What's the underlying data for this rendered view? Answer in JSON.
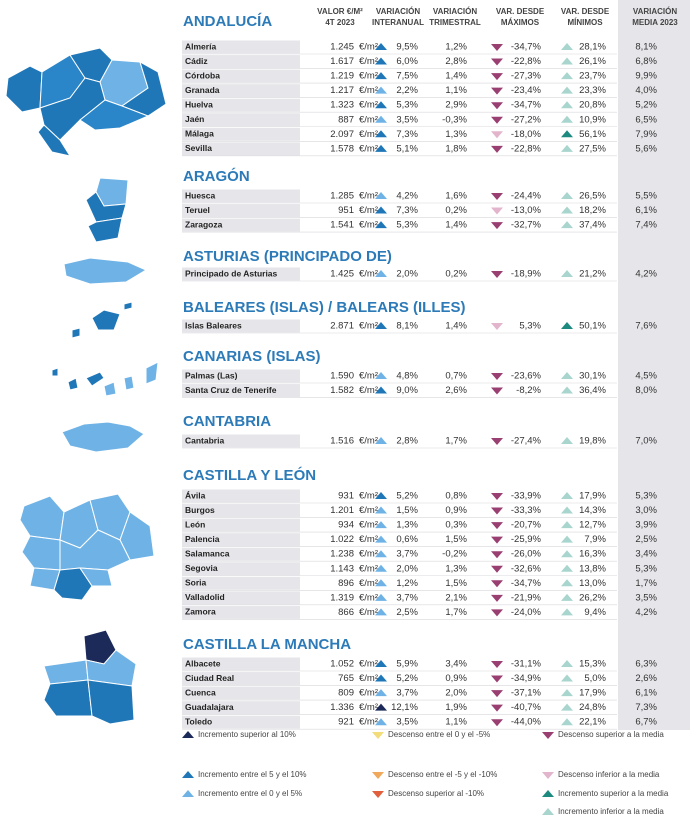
{
  "headers": [
    [
      "VALOR €/M²",
      "4T 2023"
    ],
    [
      "VARIACIÓN",
      "INTERANUAL"
    ],
    [
      "VARIACIÓN",
      "TRIMESTRAL"
    ],
    [
      "VAR. DESDE",
      "MÁXIMOS"
    ],
    [
      "VAR. DESDE",
      "MÍNIMOS"
    ],
    [
      "VARIACIÓN",
      "MEDIA 2023"
    ]
  ],
  "unit": "€/m²",
  "sections": [
    {
      "title": "ANDALUCÍA",
      "rows": [
        {
          "name": "Almería",
          "value": "1.245",
          "interanual": "9,5%",
          "trimestral": "1,2%",
          "maximos": "-34,7%",
          "minimos": "28,1%",
          "media": "8,1%",
          "icons": [
            1,
            6,
            9
          ]
        },
        {
          "name": "Cádiz",
          "value": "1.617",
          "interanual": "6,0%",
          "trimestral": "2,8%",
          "maximos": "-22,8%",
          "minimos": "26,1%",
          "media": "6,8%",
          "icons": [
            1,
            6,
            9
          ]
        },
        {
          "name": "Córdoba",
          "value": "1.219",
          "interanual": "7,5%",
          "trimestral": "1,4%",
          "maximos": "-27,3%",
          "minimos": "23,7%",
          "media": "9,9%",
          "icons": [
            1,
            6,
            9
          ]
        },
        {
          "name": "Granada",
          "value": "1.217",
          "interanual": "2,2%",
          "trimestral": "1,1%",
          "maximos": "-23,4%",
          "minimos": "23,3%",
          "media": "4,0%",
          "icons": [
            2,
            6,
            9
          ]
        },
        {
          "name": "Huelva",
          "value": "1.323",
          "interanual": "5,3%",
          "trimestral": "2,9%",
          "maximos": "-34,7%",
          "minimos": "20,8%",
          "media": "5,2%",
          "icons": [
            1,
            6,
            9
          ]
        },
        {
          "name": "Jaén",
          "value": "887",
          "interanual": "3,5%",
          "trimestral": "-0,3%",
          "maximos": "-27,2%",
          "minimos": "10,9%",
          "media": "6,5%",
          "icons": [
            2,
            6,
            9
          ]
        },
        {
          "name": "Málaga",
          "value": "2.097",
          "interanual": "7,3%",
          "trimestral": "1,3%",
          "maximos": "-18,0%",
          "minimos": "56,1%",
          "media": "7,9%",
          "icons": [
            1,
            7,
            8
          ]
        },
        {
          "name": "Sevilla",
          "value": "1.578",
          "interanual": "5,1%",
          "trimestral": "1,8%",
          "maximos": "-22,8%",
          "minimos": "27,5%",
          "media": "5,6%",
          "icons": [
            1,
            6,
            9
          ]
        }
      ]
    },
    {
      "title": "ARAGÓN",
      "rows": [
        {
          "name": "Huesca",
          "value": "1.285",
          "interanual": "4,2%",
          "trimestral": "1,6%",
          "maximos": "-24,4%",
          "minimos": "26,5%",
          "media": "5,5%",
          "icons": [
            2,
            6,
            9
          ]
        },
        {
          "name": "Teruel",
          "value": "951",
          "interanual": "7,3%",
          "trimestral": "0,2%",
          "maximos": "-13,0%",
          "minimos": "18,2%",
          "media": "6,1%",
          "icons": [
            1,
            7,
            9
          ]
        },
        {
          "name": "Zaragoza",
          "value": "1.541",
          "interanual": "5,3%",
          "trimestral": "1,4%",
          "maximos": "-32,7%",
          "minimos": "37,4%",
          "media": "7,4%",
          "icons": [
            1,
            6,
            9
          ]
        }
      ]
    },
    {
      "title": "ASTURIAS (PRINCIPADO DE)",
      "rows": [
        {
          "name": "Principado de Asturias",
          "value": "1.425",
          "interanual": "2,0%",
          "trimestral": "0,2%",
          "maximos": "-18,9%",
          "minimos": "21,2%",
          "media": "4,2%",
          "icons": [
            2,
            6,
            9
          ]
        }
      ]
    },
    {
      "title": "BALEARES (ISLAS) / BALEARS (ILLES)",
      "rows": [
        {
          "name": "Islas Baleares",
          "value": "2.871",
          "interanual": "8,1%",
          "trimestral": "1,4%",
          "maximos": "5,3%",
          "minimos": "50,1%",
          "media": "7,6%",
          "icons": [
            1,
            7,
            8
          ]
        }
      ]
    },
    {
      "title": "CANARIAS (ISLAS)",
      "rows": [
        {
          "name": "Palmas (Las)",
          "value": "1.590",
          "interanual": "4,8%",
          "trimestral": "0,7%",
          "maximos": "-23,6%",
          "minimos": "30,1%",
          "media": "4,5%",
          "icons": [
            2,
            6,
            9
          ]
        },
        {
          "name": "Santa Cruz de Tenerife",
          "value": "1.582",
          "interanual": "9,0%",
          "trimestral": "2,6%",
          "maximos": "-8,2%",
          "minimos": "36,4%",
          "media": "8,0%",
          "icons": [
            1,
            6,
            9
          ]
        }
      ]
    },
    {
      "title": "CANTABRIA",
      "rows": [
        {
          "name": "Cantabria",
          "value": "1.516",
          "interanual": "2,8%",
          "trimestral": "1,7%",
          "maximos": "-27,4%",
          "minimos": "19,8%",
          "media": "7,0%",
          "icons": [
            2,
            6,
            9
          ]
        }
      ]
    },
    {
      "title": "CASTILLA Y LEÓN",
      "rows": [
        {
          "name": "Ávila",
          "value": "931",
          "interanual": "5,2%",
          "trimestral": "0,8%",
          "maximos": "-33,9%",
          "minimos": "17,9%",
          "media": "5,3%",
          "icons": [
            1,
            6,
            9
          ]
        },
        {
          "name": "Burgos",
          "value": "1.201",
          "interanual": "1,5%",
          "trimestral": "0,9%",
          "maximos": "-33,3%",
          "minimos": "14,3%",
          "media": "3,0%",
          "icons": [
            2,
            6,
            9
          ]
        },
        {
          "name": "León",
          "value": "934",
          "interanual": "1,3%",
          "trimestral": "0,3%",
          "maximos": "-20,7%",
          "minimos": "12,7%",
          "media": "3,9%",
          "icons": [
            2,
            6,
            9
          ]
        },
        {
          "name": "Palencia",
          "value": "1.022",
          "interanual": "0,6%",
          "trimestral": "1,5%",
          "maximos": "-25,9%",
          "minimos": "7,9%",
          "media": "2,5%",
          "icons": [
            2,
            6,
            9
          ]
        },
        {
          "name": "Salamanca",
          "value": "1.238",
          "interanual": "3,7%",
          "trimestral": "-0,2%",
          "maximos": "-26,0%",
          "minimos": "16,3%",
          "media": "3,4%",
          "icons": [
            2,
            6,
            9
          ]
        },
        {
          "name": "Segovia",
          "value": "1.143",
          "interanual": "2,0%",
          "trimestral": "1,3%",
          "maximos": "-32,6%",
          "minimos": "13,8%",
          "media": "5,3%",
          "icons": [
            2,
            6,
            9
          ]
        },
        {
          "name": "Soria",
          "value": "896",
          "interanual": "1,2%",
          "trimestral": "1,5%",
          "maximos": "-34,7%",
          "minimos": "13,0%",
          "media": "1,7%",
          "icons": [
            2,
            6,
            9
          ]
        },
        {
          "name": "Valladolid",
          "value": "1.319",
          "interanual": "3,7%",
          "trimestral": "2,1%",
          "maximos": "-21,9%",
          "minimos": "26,2%",
          "media": "3,5%",
          "icons": [
            2,
            6,
            9
          ]
        },
        {
          "name": "Zamora",
          "value": "866",
          "interanual": "2,5%",
          "trimestral": "1,7%",
          "maximos": "-24,0%",
          "minimos": "9,4%",
          "media": "4,2%",
          "icons": [
            2,
            6,
            9
          ]
        }
      ]
    },
    {
      "title": "CASTILLA LA MANCHA",
      "rows": [
        {
          "name": "Albacete",
          "value": "1.052",
          "interanual": "5,9%",
          "trimestral": "3,4%",
          "maximos": "-31,1%",
          "minimos": "15,3%",
          "media": "6,3%",
          "icons": [
            1,
            6,
            9
          ]
        },
        {
          "name": "Ciudad Real",
          "value": "765",
          "interanual": "5,2%",
          "trimestral": "0,9%",
          "maximos": "-34,9%",
          "minimos": "5,0%",
          "media": "2,6%",
          "icons": [
            1,
            6,
            9
          ]
        },
        {
          "name": "Cuenca",
          "value": "809",
          "interanual": "3,7%",
          "trimestral": "2,0%",
          "maximos": "-37,1%",
          "minimos": "17,9%",
          "media": "6,1%",
          "icons": [
            2,
            6,
            9
          ]
        },
        {
          "name": "Guadalajara",
          "value": "1.336",
          "interanual": "12,1%",
          "trimestral": "1,9%",
          "maximos": "-40,7%",
          "minimos": "24,8%",
          "media": "7,3%",
          "icons": [
            0,
            6,
            9
          ]
        },
        {
          "name": "Toledo",
          "value": "921",
          "interanual": "3,5%",
          "trimestral": "1,1%",
          "maximos": "-44,0%",
          "minimos": "22,1%",
          "media": "6,7%",
          "icons": [
            2,
            6,
            9
          ]
        }
      ]
    }
  ],
  "legend": [
    {
      "label": "Incremento superior al 10%",
      "color": "#1c2a5a"
    },
    {
      "label": "Incremento entre el 5 y el 10%",
      "color": "#1f77b8"
    },
    {
      "label": "Incremento entre el 0 y el 5%",
      "color": "#6fb3e6"
    },
    {
      "label": "Descenso entre el 0 y el -5%",
      "color": "#f3dc7a"
    },
    {
      "label": "Descenso entre el -5 y el -10%",
      "color": "#f0a85a"
    },
    {
      "label": "Descenso superior al -10%",
      "color": "#e0603e"
    },
    {
      "label": "Descenso superior a la media",
      "color": "#9a3f72"
    },
    {
      "label": "Descenso inferior a la media",
      "color": "#e2b5cc"
    },
    {
      "label": "Incremento superior a la media",
      "color": "#1d8a80"
    },
    {
      "label": "Incremento inferior a la media",
      "color": "#a9d5cf"
    }
  ]
}
